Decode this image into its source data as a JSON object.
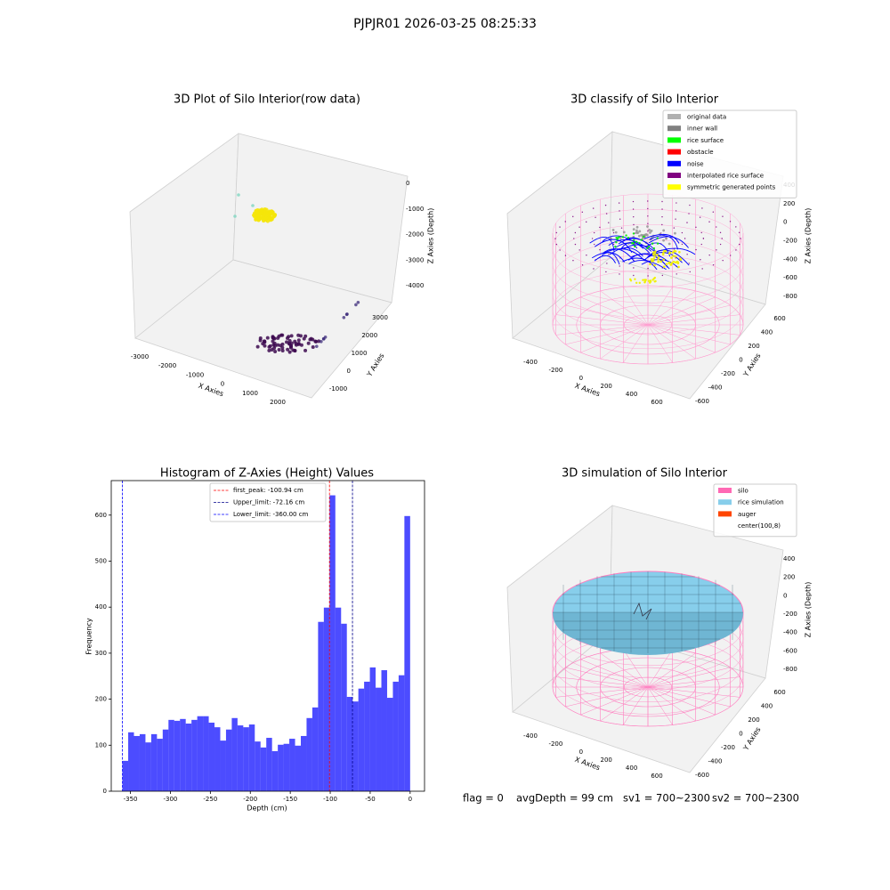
{
  "title": "PJPJR01 2026-03-25 08:25:33",
  "status": [
    "flag = 0",
    "avgDepth = 99 cm",
    "sv1 = 700~2300",
    "sv2 = 700~2300"
  ],
  "chart_data": [
    {
      "type": "scatter3d",
      "title": "3D Plot of Silo Interior(row data)",
      "xlabel": "X Axies",
      "ylabel": "Y Axies",
      "zlabel": "Z Axies (Depth)",
      "xticks": [
        -3000,
        -2000,
        -1000,
        0,
        1000,
        2000
      ],
      "yticks": [
        -1000,
        0,
        1000,
        2000,
        3000
      ],
      "zticks": [
        0,
        -1000,
        -2000,
        -3000,
        -4000
      ]
    },
    {
      "type": "classify3d",
      "title": "3D classify of Silo Interior",
      "xlabel": "X Axies",
      "ylabel": "Y Axies",
      "zlabel": "Z Axies (Depth)",
      "xticks": [
        -400,
        -200,
        0,
        200,
        400,
        600
      ],
      "yticks": [
        -600,
        -400,
        -200,
        0,
        200,
        400,
        600
      ],
      "zticks": [
        400,
        200,
        0,
        -200,
        -400,
        -600,
        -800
      ],
      "series": [
        {
          "name": "original data",
          "color": "#b0b0b0"
        },
        {
          "name": "inner wall",
          "color": "#808080"
        },
        {
          "name": "rice surface",
          "color": "#00ff00"
        },
        {
          "name": "obstacle",
          "color": "#ff0000"
        },
        {
          "name": "noise",
          "color": "#0000ff"
        },
        {
          "name": "interpolated rice surface",
          "color": "#800080"
        },
        {
          "name": "symmetric generated points",
          "color": "#ffff00"
        }
      ]
    },
    {
      "type": "histogram",
      "title": "Histogram of Z-Axies (Height) Values",
      "xlabel": "Depth (cm)",
      "ylabel": "Frequency",
      "color": "#0000ff",
      "bins": [
        -360,
        -352.8,
        -345.6,
        -338.4,
        -331.2,
        -324,
        -316.8,
        -309.6,
        -302.4,
        -295.2,
        -288,
        -280.8,
        -273.6,
        -266.4,
        -259.2,
        -252,
        -244.8,
        -237.6,
        -230.4,
        -223.2,
        -216,
        -208.8,
        -201.6,
        -194.4,
        -187.2,
        -180,
        -172.8,
        -165.6,
        -158.4,
        -151.2,
        -144,
        -136.8,
        -129.6,
        -122.4,
        -115.2,
        -108,
        -100.8,
        -93.6,
        -86.4,
        -79.2,
        -72,
        -64.8,
        -57.6,
        -50.4,
        -43.2,
        -36,
        -28.8,
        -21.6,
        -14.4,
        -7.2,
        0
      ],
      "values": [
        66,
        128,
        120,
        124,
        106,
        124,
        114,
        134,
        155,
        153,
        157,
        147,
        155,
        163,
        163,
        149,
        139,
        110,
        134,
        159,
        143,
        139,
        145,
        108,
        95,
        116,
        87,
        101,
        103,
        114,
        99,
        120,
        159,
        182,
        368,
        399,
        643,
        399,
        364,
        205,
        195,
        223,
        238,
        269,
        225,
        263,
        203,
        238,
        252,
        598
      ],
      "xlim": [
        -374,
        18
      ],
      "ylim": [
        0,
        675
      ],
      "xticks": [
        -350,
        -300,
        -250,
        -200,
        -150,
        -100,
        -50,
        0
      ],
      "yticks": [
        0,
        100,
        200,
        300,
        400,
        500,
        600
      ],
      "lines": [
        {
          "label": "first_peak: -100.94 cm",
          "value": -100.94,
          "color": "#ff0000"
        },
        {
          "label": "Upper_limit: -72.16 cm",
          "value": -72.16,
          "color": "#00008b"
        },
        {
          "label": "Lower_limit: -360.00 cm",
          "value": -360,
          "color": "#0000ff"
        }
      ]
    },
    {
      "type": "surface3d",
      "title": "3D simulation of Silo Interior",
      "xlabel": "X Axies",
      "ylabel": "Y Axies",
      "zlabel": "Z Axies (Depth)",
      "xticks": [
        -400,
        -200,
        0,
        200,
        400,
        600
      ],
      "yticks": [
        -600,
        -400,
        -200,
        0,
        200,
        400,
        600
      ],
      "zticks": [
        400,
        200,
        0,
        -200,
        -400,
        -600,
        -800
      ],
      "series": [
        {
          "name": "silo",
          "color": "#ff69b4"
        },
        {
          "name": "rice simulation",
          "color": "#87ceeb"
        },
        {
          "name": "auger",
          "color": "#ff4500"
        },
        {
          "name": "center(100,8)",
          "color": "#ffffff"
        }
      ]
    }
  ]
}
